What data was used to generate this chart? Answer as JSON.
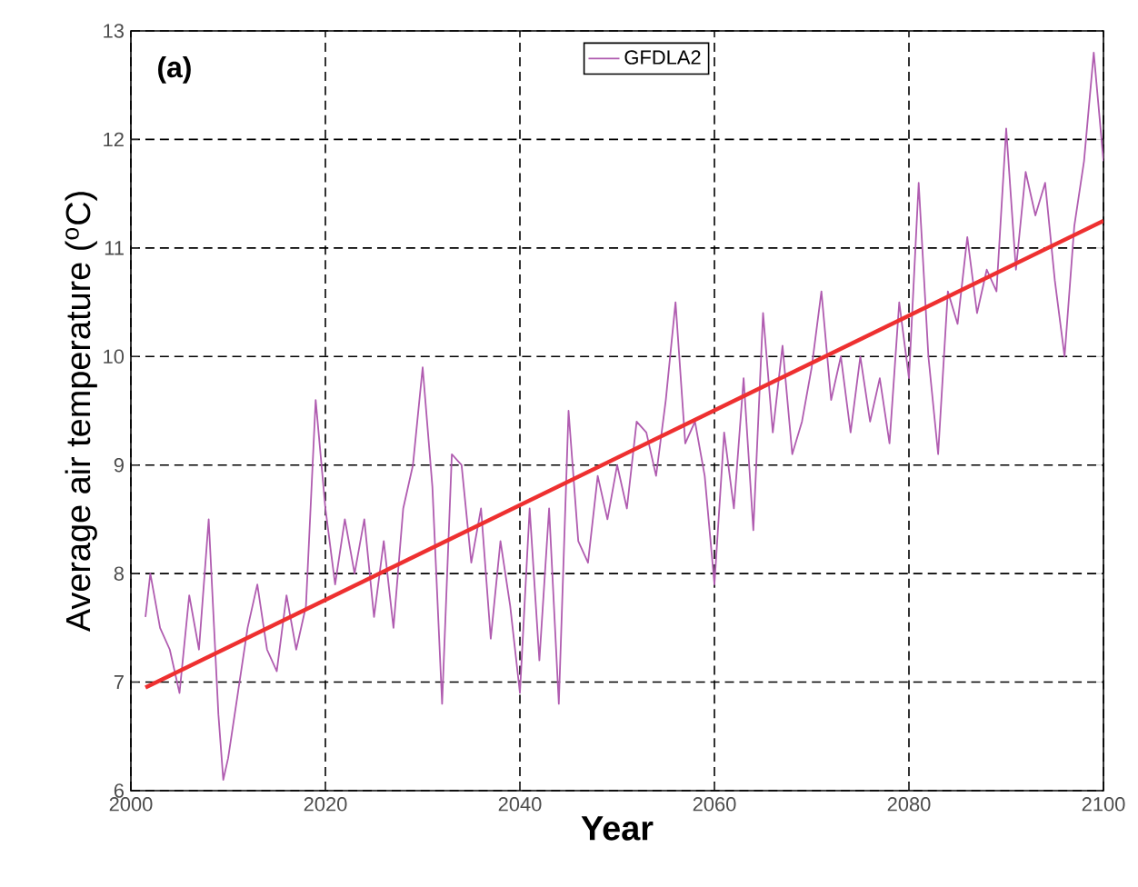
{
  "chart_data": {
    "type": "line",
    "xlabel": "Year",
    "ylabel": "Average air temperature ($^{o}$C)",
    "annotations": [
      "(a)"
    ],
    "xlim": [
      2000,
      2100
    ],
    "ylim": [
      6,
      13
    ],
    "xticks": [
      2000,
      2020,
      2040,
      2060,
      2080,
      2100
    ],
    "yticks": [
      6,
      7,
      8,
      9,
      10,
      11,
      12,
      13
    ],
    "grid": true,
    "legend": "top",
    "marker": "none",
    "line_style": "solid",
    "series": [
      {
        "name": "GFDLA2",
        "color": "#b05cb0",
        "x": [
          2001.5,
          2002,
          2003,
          2004,
          2005,
          2006,
          2007,
          2008,
          2009,
          2009.5,
          2010,
          2011,
          2012,
          2013,
          2014,
          2015,
          2016,
          2017,
          2018,
          2019,
          2020,
          2021,
          2022,
          2023,
          2024,
          2025,
          2026,
          2027,
          2028,
          2029,
          2030,
          2031,
          2032,
          2033,
          2034,
          2035,
          2036,
          2037,
          2038,
          2039,
          2040,
          2041,
          2042,
          2043,
          2044,
          2045,
          2046,
          2047,
          2048,
          2049,
          2050,
          2051,
          2052,
          2053,
          2054,
          2055,
          2056,
          2057,
          2058,
          2059,
          2060,
          2061,
          2062,
          2063,
          2064,
          2065,
          2066,
          2067,
          2068,
          2069,
          2070,
          2071,
          2072,
          2073,
          2074,
          2075,
          2076,
          2077,
          2078,
          2079,
          2080,
          2081,
          2082,
          2083,
          2084,
          2085,
          2086,
          2087,
          2088,
          2089,
          2090,
          2091,
          2092,
          2093,
          2094,
          2095,
          2096,
          2097,
          2098,
          2099,
          2100
        ],
        "values": [
          7.6,
          8.0,
          7.5,
          7.3,
          6.9,
          7.8,
          7.3,
          8.5,
          6.7,
          6.1,
          6.3,
          6.9,
          7.5,
          7.9,
          7.3,
          7.1,
          7.8,
          7.3,
          7.7,
          9.6,
          8.6,
          7.9,
          8.5,
          8.0,
          8.5,
          7.6,
          8.3,
          7.5,
          8.6,
          9.0,
          9.9,
          8.8,
          6.8,
          9.1,
          9.0,
          8.1,
          8.6,
          7.4,
          8.3,
          7.7,
          6.9,
          8.6,
          7.2,
          8.6,
          6.8,
          9.5,
          8.3,
          8.1,
          8.9,
          8.5,
          9.0,
          8.6,
          9.4,
          9.3,
          8.9,
          9.6,
          10.5,
          9.2,
          9.4,
          8.9,
          7.9,
          9.3,
          8.6,
          9.8,
          8.4,
          10.4,
          9.3,
          10.1,
          9.1,
          9.4,
          9.9,
          10.6,
          9.6,
          10.0,
          9.3,
          10.0,
          9.4,
          9.8,
          9.2,
          10.5,
          9.8,
          11.6,
          10.0,
          9.1,
          10.6,
          10.3,
          11.1,
          10.4,
          10.8,
          10.6,
          12.1,
          10.8,
          11.7,
          11.3,
          11.6,
          10.7,
          10.0,
          11.2,
          11.8,
          12.8,
          11.8
        ]
      },
      {
        "color": "#ee3030",
        "x": [
          2001.5,
          2100
        ],
        "values": [
          6.95,
          11.25
        ]
      }
    ]
  }
}
